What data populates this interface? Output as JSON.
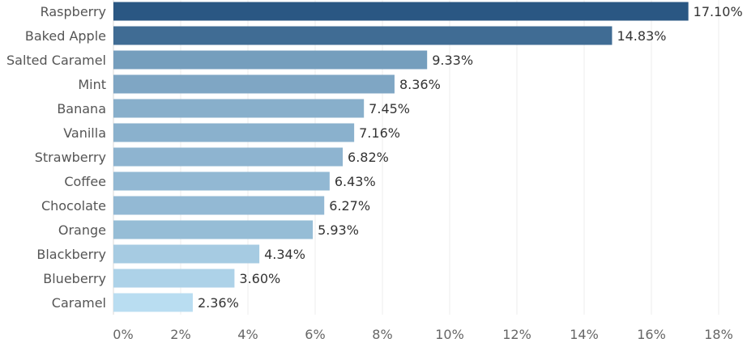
{
  "chart_data": {
    "type": "bar",
    "orientation": "horizontal",
    "categories": [
      "Raspberry",
      "Baked Apple",
      "Salted Caramel",
      "Mint",
      "Banana",
      "Vanilla",
      "Strawberry",
      "Coffee",
      "Chocolate",
      "Orange",
      "Blackberry",
      "Blueberry",
      "Caramel"
    ],
    "values": [
      17.1,
      14.83,
      9.33,
      8.36,
      7.45,
      7.16,
      6.82,
      6.43,
      6.27,
      5.93,
      4.34,
      3.6,
      2.36
    ],
    "value_labels": [
      "17.10%",
      "14.83%",
      "9.33%",
      "8.36%",
      "7.45%",
      "7.16%",
      "6.82%",
      "6.43%",
      "6.27%",
      "5.93%",
      "4.34%",
      "3.60%",
      "2.36%"
    ],
    "x_ticks": [
      0,
      2,
      4,
      6,
      8,
      10,
      12,
      14,
      16,
      18
    ],
    "x_tick_labels": [
      "0%",
      "2%",
      "4%",
      "6%",
      "8%",
      "10%",
      "12%",
      "14%",
      "16%",
      "18%"
    ],
    "xlim": [
      0,
      18.5
    ],
    "grid": "vertical",
    "title": "",
    "xlabel": "",
    "ylabel": "",
    "colors": {
      "dark": "#2a5783",
      "light": "#b9ddf1"
    }
  }
}
